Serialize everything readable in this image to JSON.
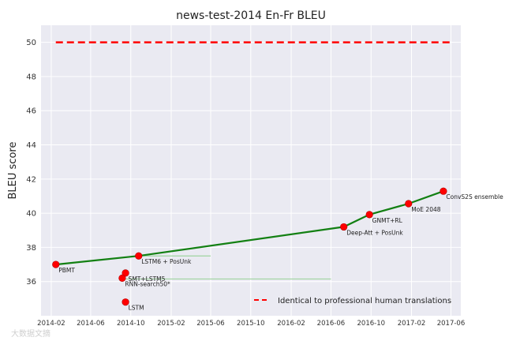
{
  "chart_data": {
    "type": "line",
    "title": "news-test-2014 En-Fr BLEU",
    "xlabel": "",
    "ylabel": "BLEU score",
    "xlim": [
      "2014-01-01",
      "2017-07-01"
    ],
    "ylim": [
      34,
      51
    ],
    "grid": true,
    "x_tick_labels": [
      "2014-02",
      "2014-06",
      "2014-10",
      "2015-02",
      "2015-06",
      "2015-10",
      "2016-02",
      "2016-06",
      "2016-10",
      "2017-02",
      "2017-06"
    ],
    "y_tick_labels": [
      "36",
      "38",
      "40",
      "42",
      "44",
      "46",
      "48",
      "50"
    ],
    "points": [
      {
        "label": "PBMT",
        "date": "2014-02-15",
        "bleu": 37.0
      },
      {
        "label": "LSTM",
        "date": "2014-09-15",
        "bleu": 34.8
      },
      {
        "label": "SMT+LSTM5",
        "date": "2014-09-15",
        "bleu": 36.5
      },
      {
        "label": "RNN-search50*",
        "date": "2014-09-05",
        "bleu": 36.2
      },
      {
        "label": "LSTM6 + PosUnk",
        "date": "2014-10-25",
        "bleu": 37.5
      },
      {
        "label": "Deep-Att + PosUnk",
        "date": "2016-07-10",
        "bleu": 39.2
      },
      {
        "label": "GNMT+RL",
        "date": "2016-09-26",
        "bleu": 39.92
      },
      {
        "label": "MoE 2048",
        "date": "2017-01-23",
        "bleu": 40.56
      },
      {
        "label": "ConvS2S ensemble",
        "date": "2017-05-09",
        "bleu": 41.29
      }
    ],
    "sota_line": {
      "color": "#138013",
      "points": [
        {
          "date": "2014-02-15",
          "bleu": 37.0
        },
        {
          "date": "2014-10-25",
          "bleu": 37.5
        },
        {
          "date": "2016-07-10",
          "bleu": 39.2
        },
        {
          "date": "2016-09-26",
          "bleu": 39.92
        },
        {
          "date": "2017-01-23",
          "bleu": 40.56
        },
        {
          "date": "2017-05-09",
          "bleu": 41.29
        }
      ]
    },
    "faint_lines": [
      {
        "from": "2014-10-25",
        "to": "2015-06-01",
        "bleu": 37.5
      },
      {
        "from": "2014-09-05",
        "to": "2016-06-01",
        "bleu": 36.15
      }
    ],
    "human_line": {
      "label": "Identical to professional human translations",
      "bleu": 50,
      "from": "2014-02-15",
      "to": "2017-05-31",
      "color": "#ff0000"
    },
    "legend": {
      "position": "bottom-right"
    },
    "point_color": "#ff0000",
    "background": "#eaeaf2"
  },
  "watermark": "大数据文摘"
}
